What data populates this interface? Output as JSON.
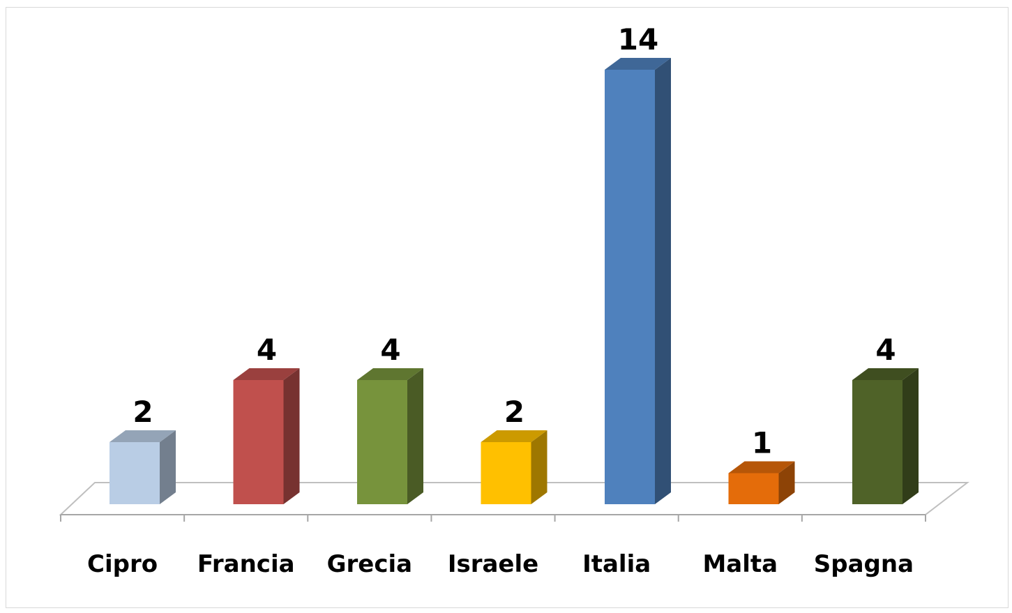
{
  "chart_data": {
    "type": "bar",
    "style": "3d-column",
    "categories": [
      "Cipro",
      "Francia",
      "Grecia",
      "Israele",
      "Italia",
      "Malta",
      "Spagna"
    ],
    "values": [
      2,
      4,
      4,
      2,
      14,
      1,
      4
    ],
    "data_labels": [
      "2",
      "4",
      "4",
      "2",
      "14",
      "1",
      "4"
    ],
    "colors": [
      "#b9cde5",
      "#c0504d",
      "#77933c",
      "#ffc000",
      "#4f81bd",
      "#e46c0a",
      "#4f6228"
    ],
    "title": "",
    "xlabel": "",
    "ylabel": "",
    "ylim": [
      0,
      14
    ],
    "grid": false,
    "legend": "none"
  }
}
